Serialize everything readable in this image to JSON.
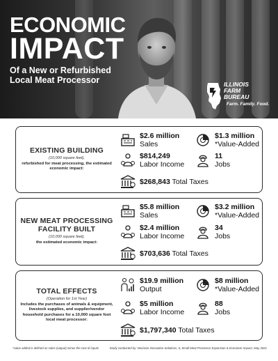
{
  "hero": {
    "title_line1": "ECONOMIC",
    "title_line2": "IMPACT",
    "subtitle_line1": "Of a New or Refurbished",
    "subtitle_line2": "Local Meat Processor",
    "logo": {
      "line1": "ILLINOIS",
      "line2": "FARM",
      "line3": "BUREAU",
      "tagline": "Farm. Family. Food."
    }
  },
  "sections": [
    {
      "title": "EXISTING BUILDING",
      "note": "(10,000 square feet),",
      "desc": "refurbished for meat processing, the estimated economic impact:",
      "sales_value": "$2.6 million",
      "sales_label": "Sales",
      "value_added_value": "$1.3 million",
      "value_added_label": "*Value-Added",
      "labor_value": "$814,249",
      "labor_label": "Labor Income",
      "jobs_value": "11",
      "jobs_label": "Jobs",
      "taxes_value": "$268,843",
      "taxes_label": "Total Taxes"
    },
    {
      "title": "NEW MEAT PROCESSING FACILITY BUILT",
      "note": "(10,000 square feet),",
      "desc": "the estimated economic impact:",
      "sales_value": "$5.8 million",
      "sales_label": "Sales",
      "value_added_value": "$3.2 million",
      "value_added_label": "*Value-Added",
      "labor_value": "$2.4 million",
      "labor_label": "Labor Income",
      "jobs_value": "34",
      "jobs_label": "Jobs",
      "taxes_value": "$703,636",
      "taxes_label": "Total Taxes"
    },
    {
      "title": "TOTAL EFFECTS",
      "note": "(Operation for 1st Year)",
      "desc": "Includes the purchases of animals & equipment, livestock supplies, and supplier/vendor household purchases for a 10,000 square foot local meat processor:",
      "sales_value": "$19.9 million",
      "sales_label": "Output",
      "value_added_value": "$8 million",
      "value_added_label": "*Value-Added",
      "labor_value": "$5 million",
      "labor_label": "Labor Income",
      "jobs_value": "88",
      "jobs_label": "Jobs",
      "taxes_value": "$1,797,340",
      "taxes_label": "Total Taxes"
    }
  ],
  "footer": {
    "left": "*value added is defined as sales (output) minus the cost of inputs",
    "right": "Study conducted by: Decision Innovation Solutions, IL Small Meat Processor Expansion & Economic Impact, May 2021"
  },
  "icons": {
    "sales": "cash-register-icon",
    "value_added": "pie-chart-icon",
    "labor": "money-bag-person-icon",
    "jobs": "worker-icon",
    "taxes": "government-building-icon"
  }
}
